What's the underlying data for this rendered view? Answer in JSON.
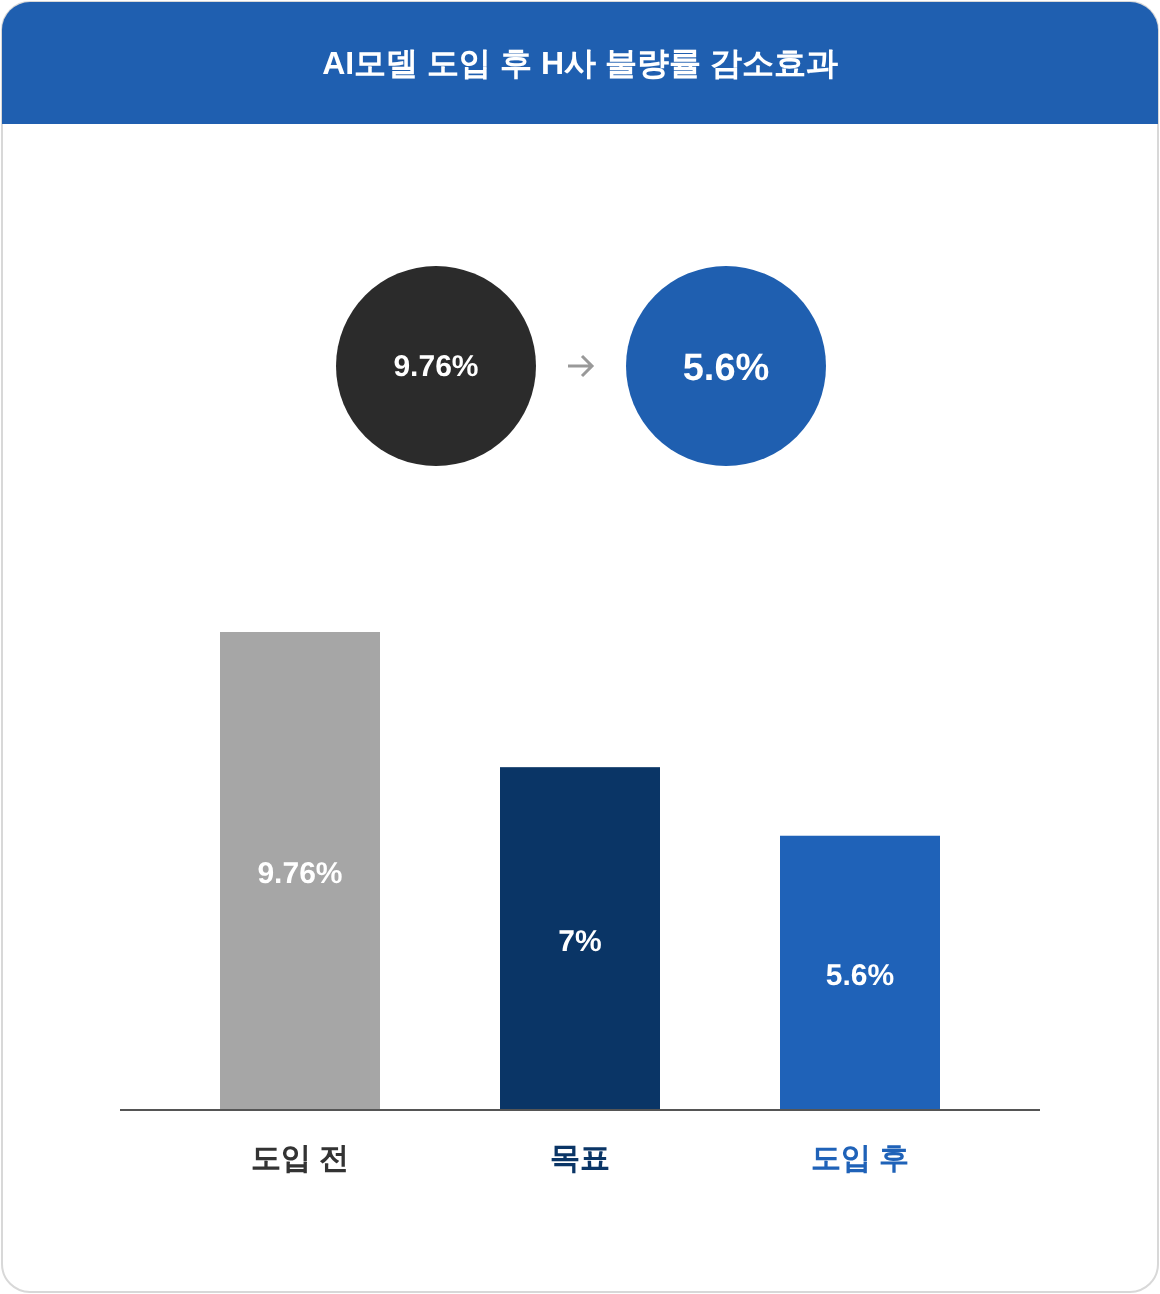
{
  "chart_data": {
    "type": "bar",
    "title": "AI모델 도입 후 H사 불량률 감소효과",
    "categories": [
      "도입 전",
      "목표",
      "도입 후"
    ],
    "values": [
      9.76,
      7,
      5.6
    ],
    "colors": [
      "#a6a6a6",
      "#0a3566",
      "#1f62b8"
    ],
    "value_labels": [
      "9.76%",
      "7%",
      "5.6%"
    ],
    "annotations": [
      "9.76%",
      "5.6%"
    ]
  }
}
